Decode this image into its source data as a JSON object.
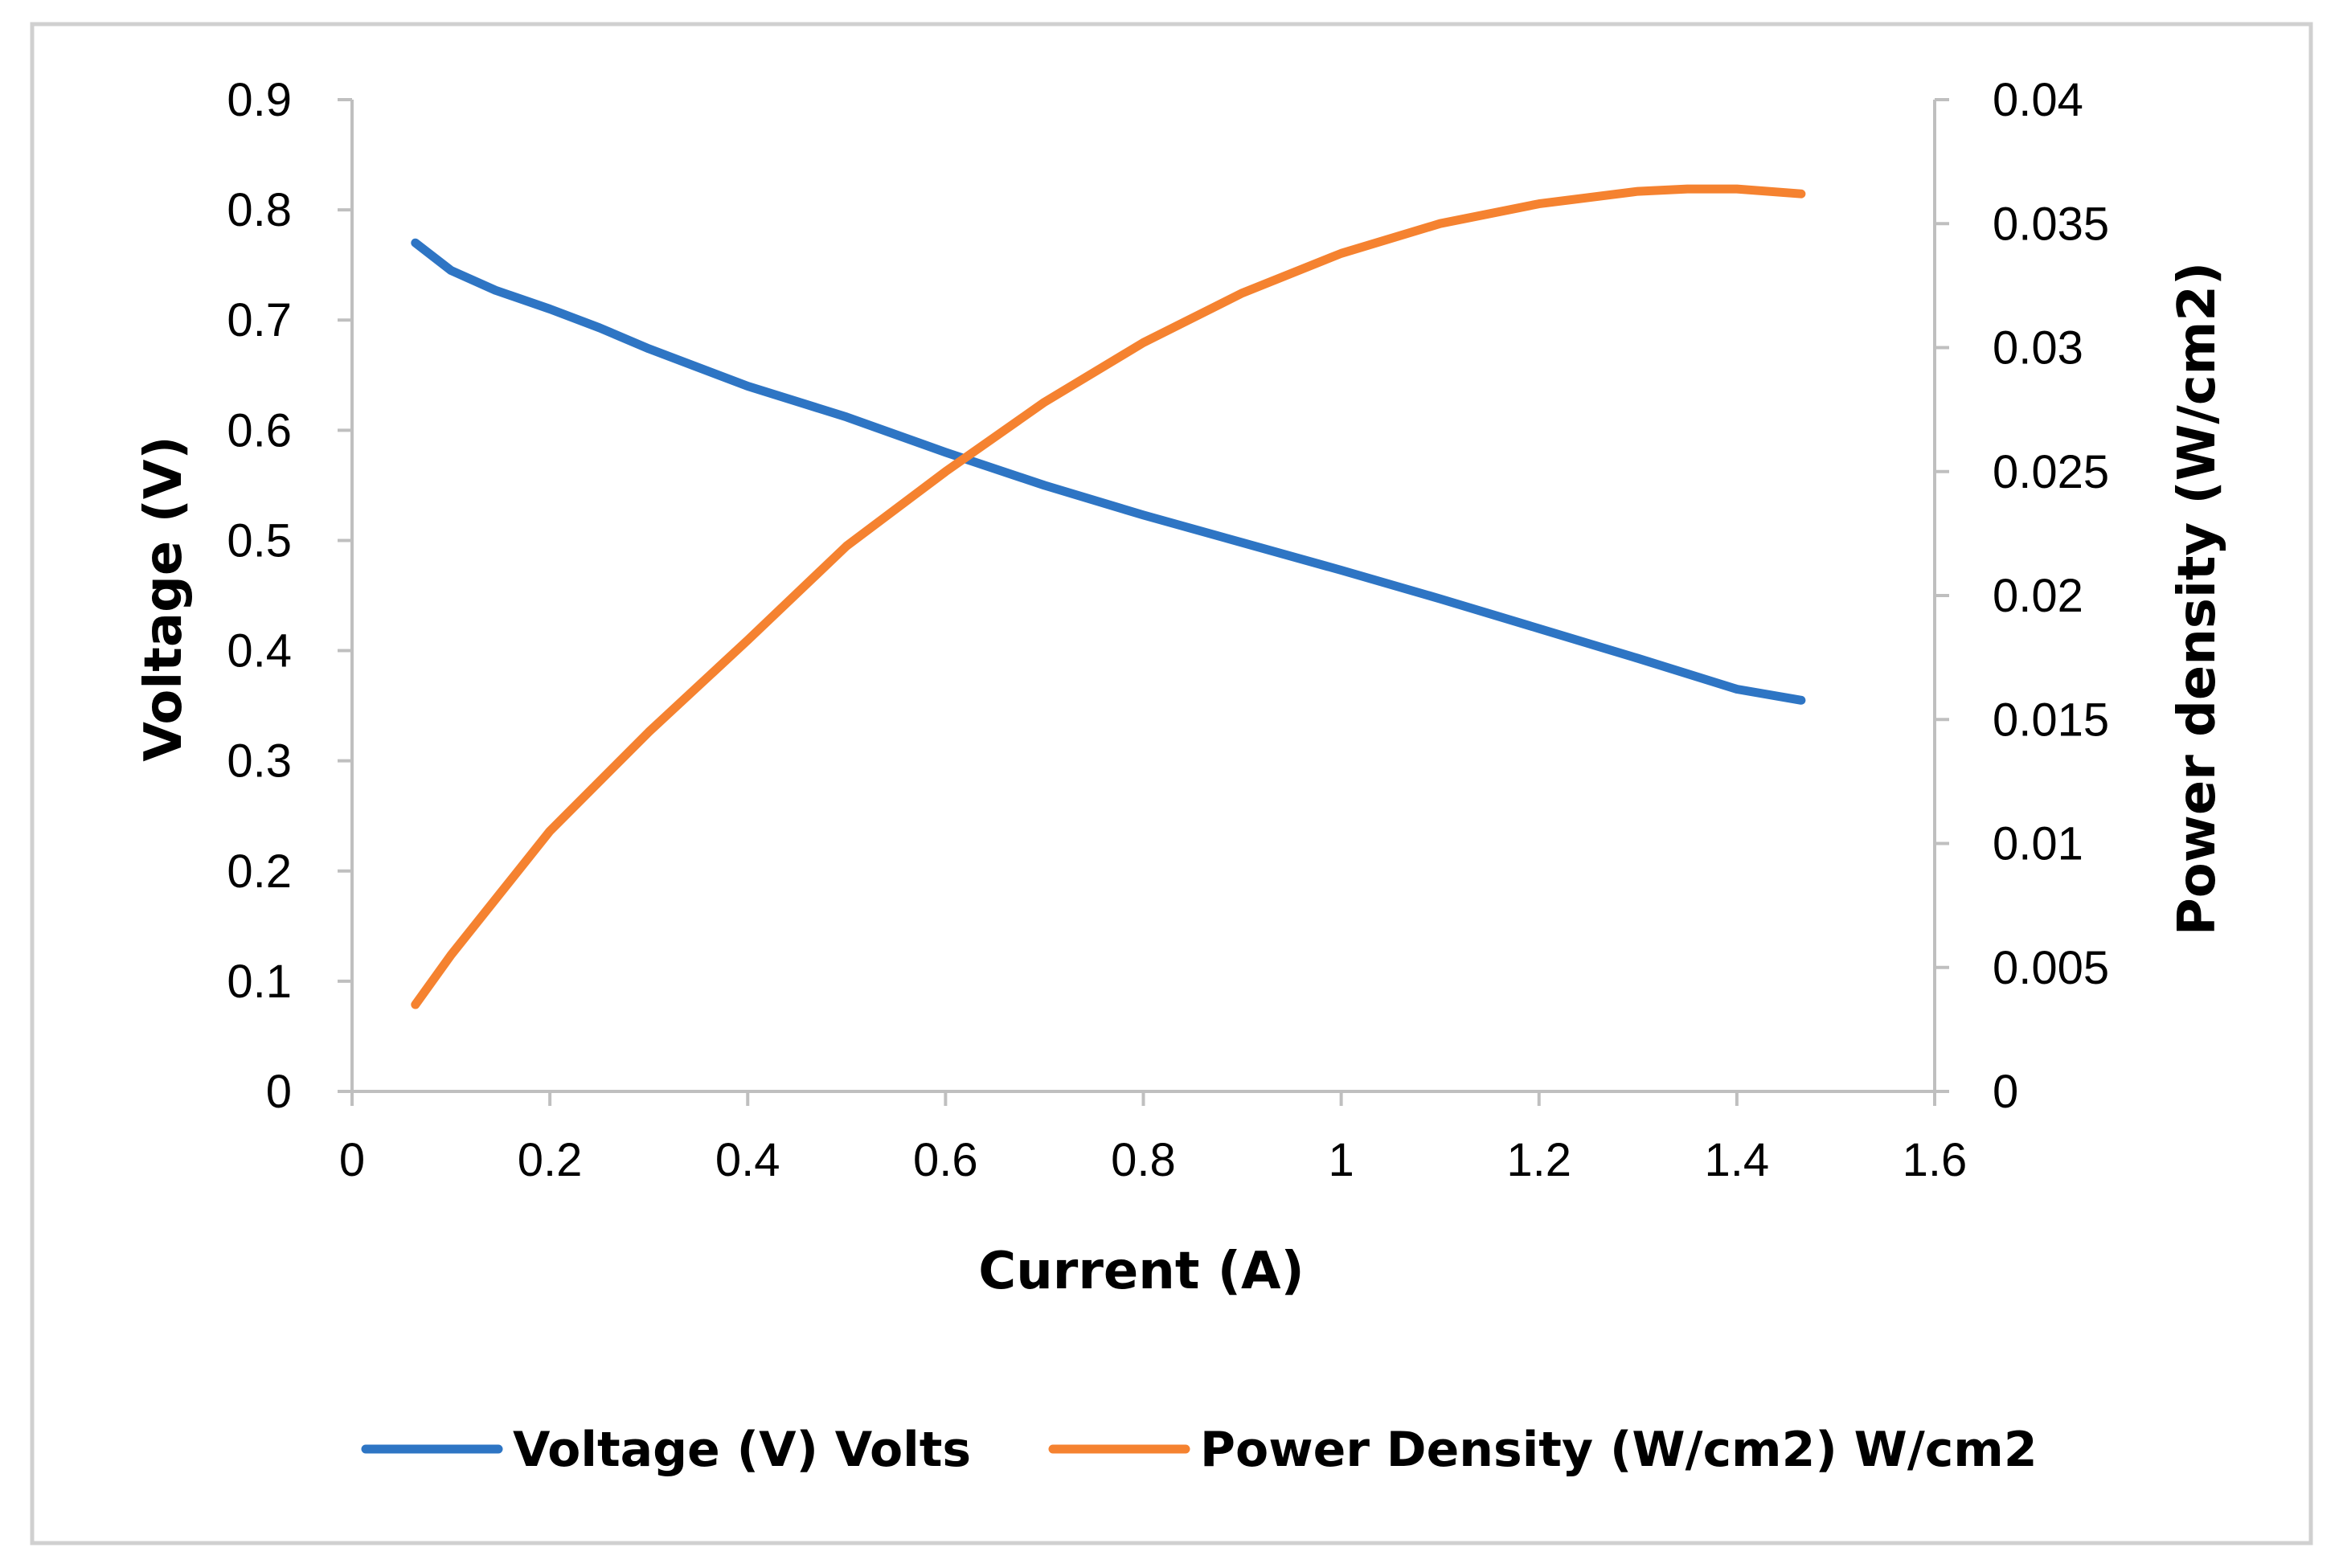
{
  "chart_data": {
    "type": "line",
    "title": "",
    "xlabel": "Current (A)",
    "ylabel": "Voltage (V)",
    "y2label": "Power density (W/cm2)",
    "xlim": [
      0,
      1.6
    ],
    "ylim": [
      0,
      0.9
    ],
    "y2lim": [
      0,
      0.04
    ],
    "x_ticks": [
      "0",
      "0.2",
      "0.4",
      "0.6",
      "0.8",
      "1",
      "1.2",
      "1.4",
      "1.6"
    ],
    "y_ticks": [
      "0",
      "0.1",
      "0.2",
      "0.3",
      "0.4",
      "0.5",
      "0.6",
      "0.7",
      "0.8",
      "0.9"
    ],
    "y2_ticks": [
      "0",
      "0.005",
      "0.01",
      "0.015",
      "0.02",
      "0.025",
      "0.03",
      "0.035",
      "0.04"
    ],
    "grid": false,
    "legend_position": "bottom",
    "series": [
      {
        "name": "Voltage (V) Volts",
        "axis": "left",
        "color": "#2E75C4",
        "x": [
          0.064,
          0.1,
          0.145,
          0.2,
          0.25,
          0.3,
          0.4,
          0.5,
          0.6,
          0.7,
          0.8,
          0.9,
          1.0,
          1.1,
          1.2,
          1.3,
          1.4,
          1.465
        ],
        "y": [
          0.77,
          0.745,
          0.727,
          0.71,
          0.693,
          0.674,
          0.64,
          0.612,
          0.58,
          0.55,
          0.523,
          0.498,
          0.473,
          0.447,
          0.42,
          0.393,
          0.365,
          0.355
        ]
      },
      {
        "name": "Power Density (W/cm2) W/cm2",
        "axis": "right",
        "color": "#F58230",
        "x": [
          0.064,
          0.1,
          0.15,
          0.2,
          0.3,
          0.4,
          0.5,
          0.6,
          0.7,
          0.8,
          0.9,
          1.0,
          1.1,
          1.2,
          1.3,
          1.35,
          1.4,
          1.465
        ],
        "y": [
          0.0035,
          0.0055,
          0.008,
          0.0105,
          0.0145,
          0.0182,
          0.022,
          0.025,
          0.0278,
          0.0302,
          0.0322,
          0.0338,
          0.035,
          0.0358,
          0.0363,
          0.0364,
          0.0364,
          0.0362
        ]
      }
    ]
  }
}
